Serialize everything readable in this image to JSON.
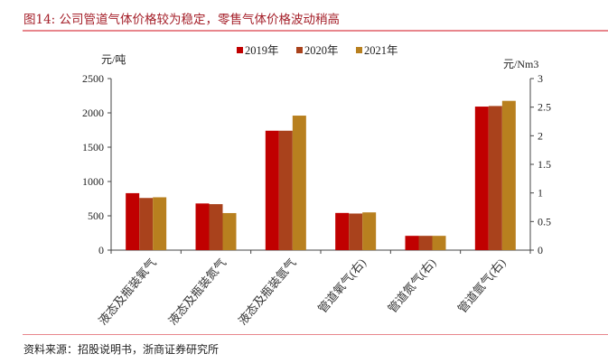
{
  "title": "图14:  公司管道气体价格较为稳定，零售气体价格波动稍高",
  "source": "资料来源：招股说明书，浙商证券研究所",
  "chart_data": {
    "type": "bar",
    "categories": [
      "液态及瓶装氧气",
      "液态及瓶装氮气",
      "液态及瓶装氩气",
      "管道氧气(右)",
      "管道氮气(右)",
      "管道氩气(右)"
    ],
    "axis_side": [
      "left",
      "left",
      "left",
      "right",
      "right",
      "right"
    ],
    "series": [
      {
        "name": "2019年",
        "color": "#c00000",
        "values": [
          830,
          680,
          1740,
          0.65,
          0.25,
          2.51
        ]
      },
      {
        "name": "2020年",
        "color": "#a9421c",
        "values": [
          760,
          670,
          1740,
          0.64,
          0.25,
          2.52
        ]
      },
      {
        "name": "2021年",
        "color": "#b8801f",
        "values": [
          770,
          540,
          1960,
          0.66,
          0.25,
          2.61
        ]
      }
    ],
    "ylabel": "元/吨",
    "y2label": "元/Nm3",
    "ylim": [
      0,
      2500
    ],
    "yticks": [
      "0",
      "500",
      "1000",
      "1500",
      "2000",
      "2500"
    ],
    "y2lim": [
      0,
      3
    ],
    "y2ticks": [
      "0",
      "0.5",
      "1",
      "1.5",
      "2",
      "2.5",
      "3"
    ],
    "legend": "top",
    "grid": false
  }
}
